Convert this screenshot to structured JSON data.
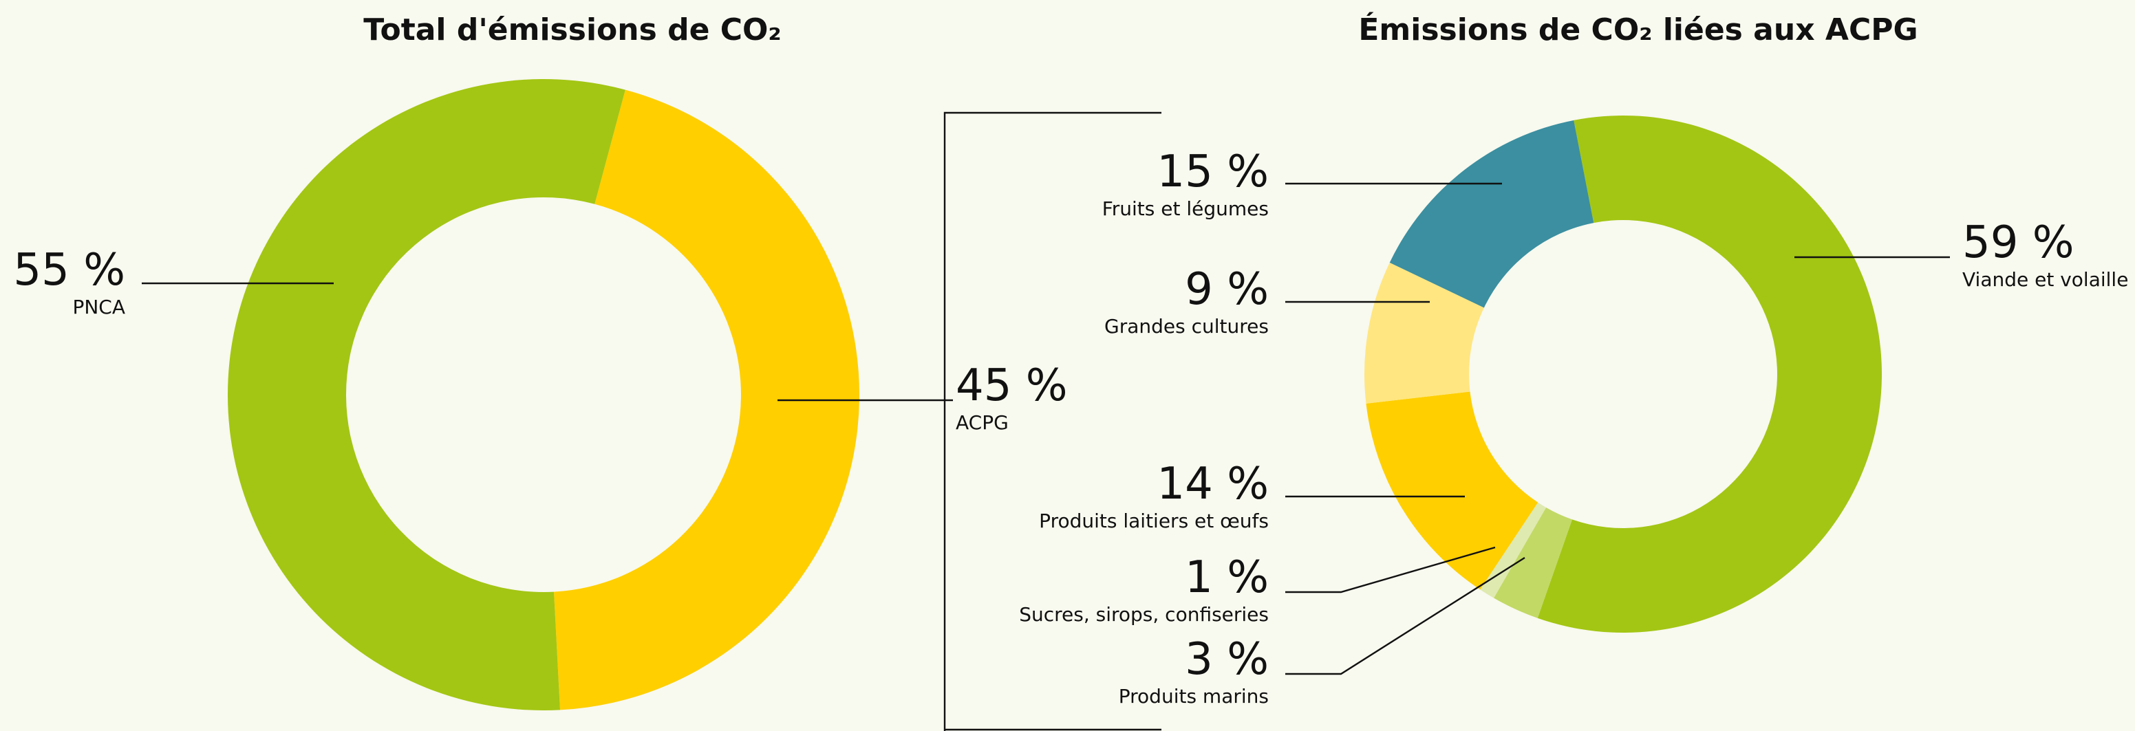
{
  "chart_data": [
    {
      "type": "pie",
      "title": "Total d'émissions de CO₂",
      "categories": [
        "ACPG",
        "PNCA"
      ],
      "values": [
        45,
        55
      ],
      "value_labels": [
        "45 %",
        "55 %"
      ],
      "colors": [
        "#ffcf00",
        "#a3c614"
      ]
    },
    {
      "type": "pie",
      "title": "Émissions de CO₂ liées aux ACPG",
      "categories": [
        "Viande et volaille",
        "Produits marins",
        "Sucres, sirops, confiseries",
        "Produits laitiers et œufs",
        "Grandes cultures",
        "Fruits et légumes"
      ],
      "values": [
        59,
        3,
        1,
        14,
        9,
        15
      ],
      "value_labels": [
        "59 %",
        "3 %",
        "1 %",
        "14 %",
        "9 %",
        "15 %"
      ],
      "colors": [
        "#a3c614",
        "#c2d966",
        "#dfeab0",
        "#ffcf00",
        "#ffe680",
        "#3b8fa0"
      ]
    }
  ]
}
